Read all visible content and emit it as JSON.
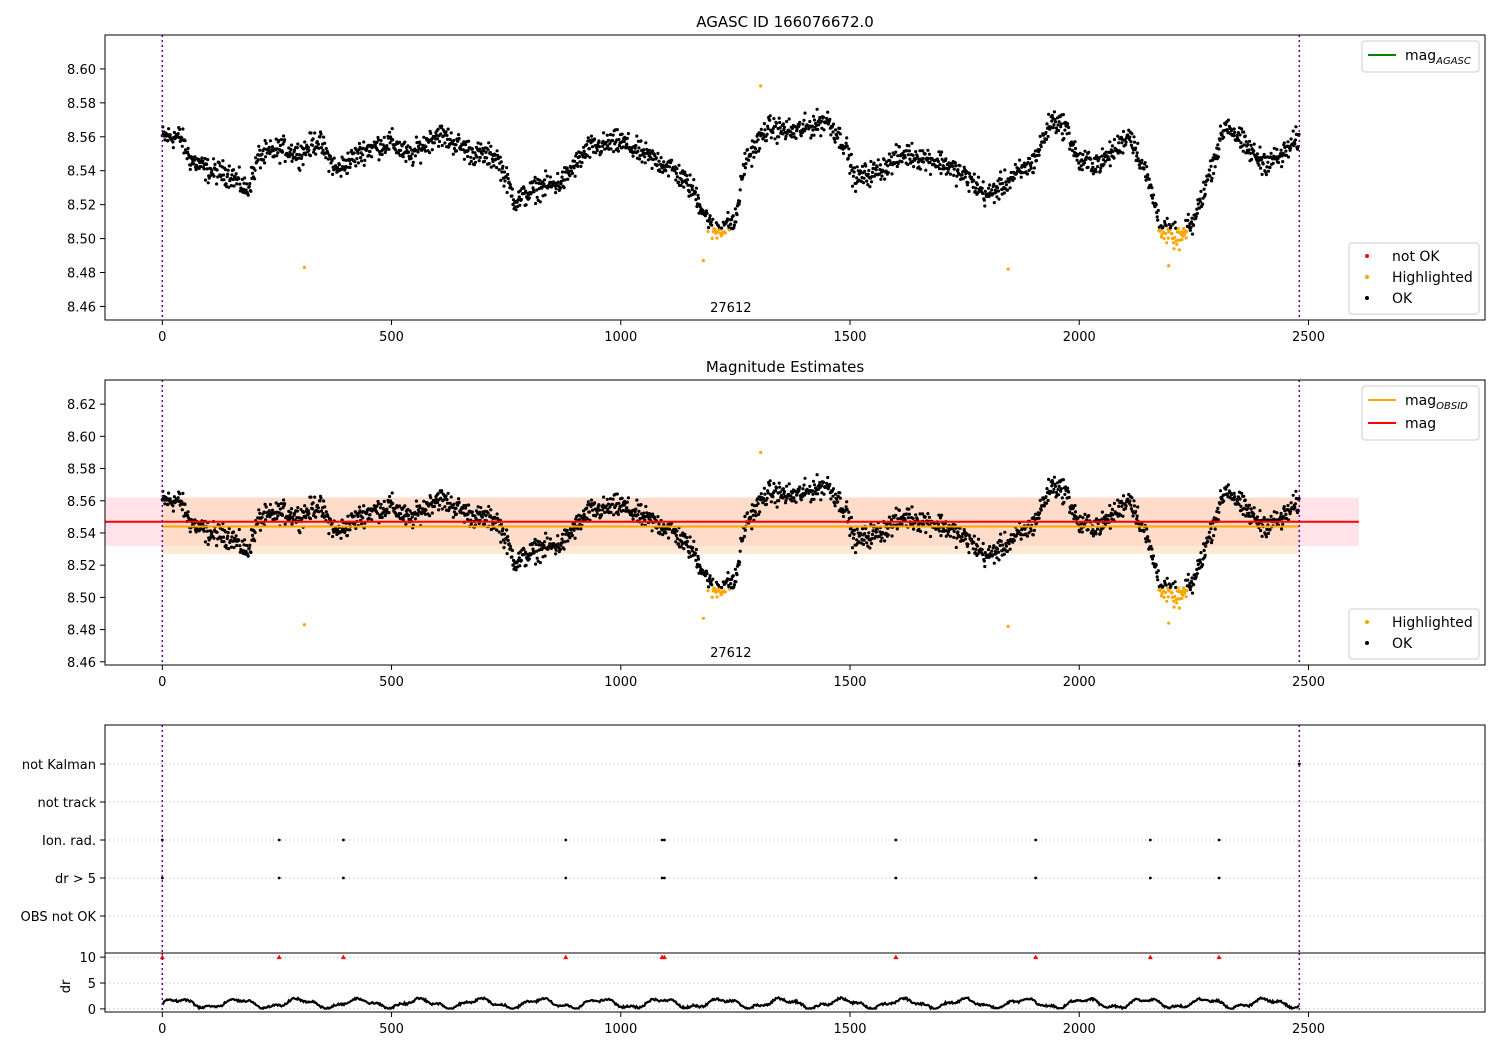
{
  "chart_data": [
    {
      "type": "scatter",
      "title": "AGASC ID 166076672.0",
      "xlim": [
        -125,
        2885
      ],
      "ylim": [
        8.452,
        8.62
      ],
      "x_ticks": [
        0,
        500,
        1000,
        1500,
        2000,
        2500
      ],
      "y_ticks": [
        8.46,
        8.48,
        8.5,
        8.52,
        8.54,
        8.56,
        8.58,
        8.6
      ],
      "obsid_label": "27612",
      "obsid_label_x": 1240,
      "obs_boundaries": [
        0,
        2480
      ],
      "legend_lines": [
        {
          "label": "mag",
          "subscript": "AGASC",
          "color": "#008000"
        }
      ],
      "legend_points": [
        {
          "label": "not OK",
          "color": "#ff0000"
        },
        {
          "label": "Highlighted",
          "color": "#ffa500"
        },
        {
          "label": "OK",
          "color": "#000000"
        }
      ],
      "legend_lines_position": "top-right",
      "legend_points_position": "lower-right"
    },
    {
      "type": "scatter",
      "title": "Magnitude Estimates",
      "xlim": [
        -125,
        2885
      ],
      "ylim": [
        8.458,
        8.635
      ],
      "x_ticks": [
        0,
        500,
        1000,
        1500,
        2000,
        2500
      ],
      "y_ticks": [
        8.46,
        8.48,
        8.5,
        8.52,
        8.54,
        8.56,
        8.58,
        8.6,
        8.62
      ],
      "obsid_label": "27612",
      "obsid_label_x": 1240,
      "obs_boundaries": [
        0,
        2480
      ],
      "mag_line": {
        "value": 8.547,
        "x_range": [
          -125,
          2610
        ],
        "band": [
          8.532,
          8.562
        ],
        "color": "#ff0000",
        "band_color": "#ffc0cb"
      },
      "mag_obsid_line": {
        "value": 8.544,
        "x_range": [
          0,
          2480
        ],
        "band": [
          8.527,
          8.562
        ],
        "color": "#ffa500",
        "band_color": "#ffd7b0"
      },
      "legend_lines": [
        {
          "label": "mag",
          "subscript": "OBSID",
          "color": "#ffa500"
        },
        {
          "label": "mag",
          "subscript": "",
          "color": "#ff0000"
        }
      ],
      "legend_points": [
        {
          "label": "Highlighted",
          "color": "#ffa500"
        },
        {
          "label": "OK",
          "color": "#000000"
        }
      ],
      "legend_lines_position": "top-right",
      "legend_points_position": "lower-right"
    },
    {
      "type": "scatter",
      "title": "",
      "xlim": [
        -125,
        2885
      ],
      "categories": [
        "not Kalman",
        "not track",
        "Ion. rad.",
        "dr > 5",
        "OBS not OK"
      ],
      "flag_events": [
        0,
        255,
        395,
        880,
        1090,
        1095,
        1600,
        1905,
        2155,
        2305
      ],
      "kalman_events": [
        2480
      ],
      "obs_boundaries": [
        0,
        2480
      ],
      "grid": true
    },
    {
      "type": "line",
      "title": "",
      "ylabel": "dr",
      "xlim": [
        -125,
        2885
      ],
      "ylim": [
        -0.6,
        10.8
      ],
      "x_ticks": [
        0,
        500,
        1000,
        1500,
        2000,
        2500
      ],
      "y_ticks": [
        0,
        5,
        10
      ],
      "dr_limit_events": [
        0,
        255,
        395,
        880,
        1090,
        1095,
        1600,
        1905,
        2155,
        2305
      ],
      "dr_limit_value": 10,
      "obs_boundaries": [
        0,
        2480
      ]
    }
  ]
}
